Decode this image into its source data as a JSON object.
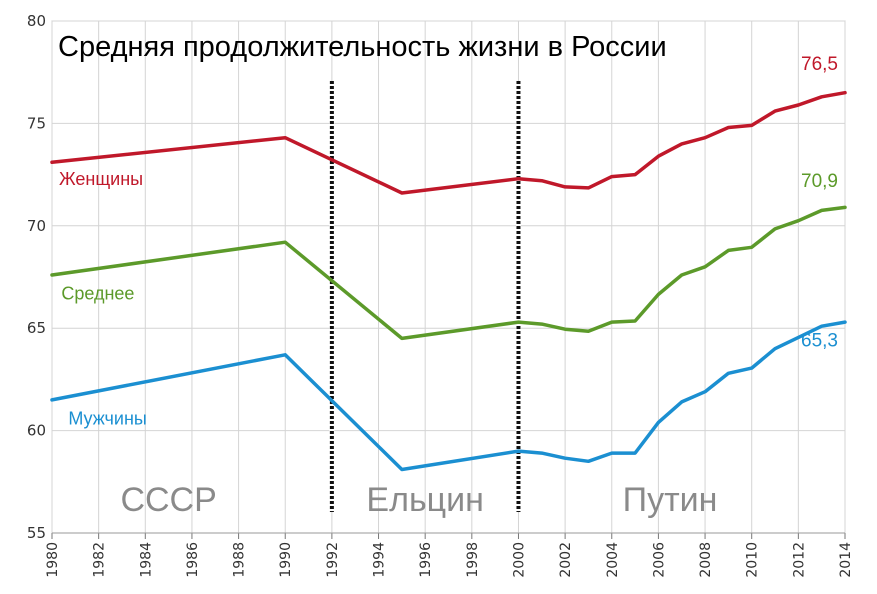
{
  "chart_data": {
    "type": "line",
    "title": "Средняя продолжительность жизни в России",
    "xlabel": "",
    "ylabel": "",
    "xlim": [
      1980,
      2014
    ],
    "ylim": [
      55,
      80
    ],
    "yticks": [
      "55",
      "60",
      "65",
      "70",
      "75",
      "80"
    ],
    "xticks": [
      "1980",
      "1982",
      "1984",
      "1986",
      "1988",
      "1990",
      "1992",
      "1994",
      "1996",
      "1998",
      "2000",
      "2002",
      "2004",
      "2006",
      "2008",
      "2010",
      "2012",
      "2014"
    ],
    "grid": true,
    "series": [
      {
        "name": "Женщины",
        "color": "#c0182a",
        "end_label": "76,5",
        "points": [
          [
            1980,
            73.1
          ],
          [
            1990,
            74.3
          ],
          [
            1995,
            71.6
          ],
          [
            2000,
            72.3
          ],
          [
            2001,
            72.2
          ],
          [
            2002,
            71.9
          ],
          [
            2003,
            71.85
          ],
          [
            2004,
            72.4
          ],
          [
            2005,
            72.5
          ],
          [
            2006,
            73.4
          ],
          [
            2007,
            74.0
          ],
          [
            2008,
            74.3
          ],
          [
            2009,
            74.8
          ],
          [
            2010,
            74.9
          ],
          [
            2011,
            75.6
          ],
          [
            2012,
            75.9
          ],
          [
            2013,
            76.3
          ],
          [
            2014,
            76.5
          ]
        ]
      },
      {
        "name": "Среднее",
        "color": "#5c9a2a",
        "end_label": "70,9",
        "points": [
          [
            1980,
            67.6
          ],
          [
            1990,
            69.2
          ],
          [
            1995,
            64.5
          ],
          [
            2000,
            65.3
          ],
          [
            2001,
            65.2
          ],
          [
            2002,
            64.95
          ],
          [
            2003,
            64.85
          ],
          [
            2004,
            65.3
          ],
          [
            2005,
            65.35
          ],
          [
            2006,
            66.65
          ],
          [
            2007,
            67.6
          ],
          [
            2008,
            68.0
          ],
          [
            2009,
            68.8
          ],
          [
            2010,
            68.95
          ],
          [
            2011,
            69.85
          ],
          [
            2012,
            70.25
          ],
          [
            2013,
            70.75
          ],
          [
            2014,
            70.9
          ]
        ]
      },
      {
        "name": "Мужчины",
        "color": "#1b8fd1",
        "end_label": "65,3",
        "points": [
          [
            1980,
            61.5
          ],
          [
            1990,
            63.7
          ],
          [
            1995,
            58.1
          ],
          [
            2000,
            59.0
          ],
          [
            2001,
            58.9
          ],
          [
            2002,
            58.65
          ],
          [
            2003,
            58.5
          ],
          [
            2004,
            58.9
          ],
          [
            2005,
            58.9
          ],
          [
            2006,
            60.4
          ],
          [
            2007,
            61.4
          ],
          [
            2008,
            61.9
          ],
          [
            2009,
            62.8
          ],
          [
            2010,
            63.05
          ],
          [
            2011,
            64.0
          ],
          [
            2012,
            64.55
          ],
          [
            2013,
            65.1
          ],
          [
            2014,
            65.3
          ]
        ]
      }
    ],
    "dividers": [
      1992,
      2000
    ],
    "eras": [
      {
        "label": "СССР",
        "x": 1985
      },
      {
        "label": "Ельцин",
        "x": 1996
      },
      {
        "label": "Путин",
        "x": 2006.5
      }
    ]
  }
}
